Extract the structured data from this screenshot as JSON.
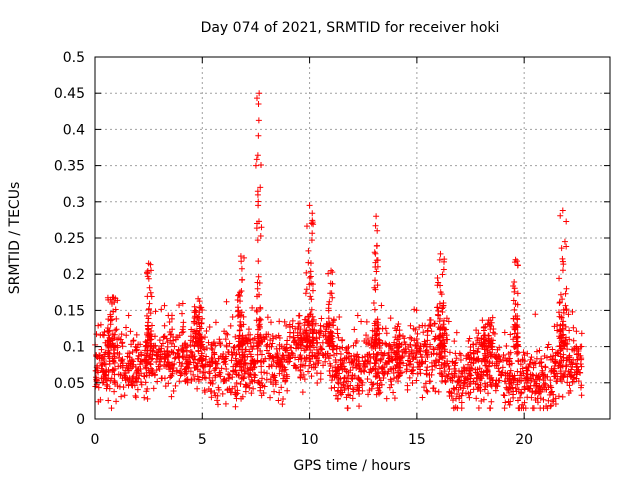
{
  "chart_data": {
    "type": "scatter",
    "title": "Day 074 of 2021, SRMTID for receiver hoki",
    "xlabel": "GPS time / hours",
    "ylabel": "SRMTID / TECUs",
    "xlim": [
      0,
      24
    ],
    "ylim": [
      0,
      0.5
    ],
    "xticks": [
      0,
      5,
      10,
      15,
      20
    ],
    "xtick_labels": [
      "0",
      "5",
      "10",
      "15",
      "20"
    ],
    "yticks": [
      0,
      0.05,
      0.1,
      0.15,
      0.2,
      0.25,
      0.3,
      0.35,
      0.4,
      0.45,
      0.5
    ],
    "ytick_labels": [
      "0",
      "0.05",
      "0.1",
      "0.15",
      "0.2",
      "0.25",
      "0.3",
      "0.35",
      "0.4",
      "0.45",
      "0.5"
    ],
    "grid": true,
    "marker": "+",
    "marker_color": "#ff0000",
    "x_extent": [
      0,
      22.7
    ],
    "baseline_segments": [
      {
        "x": [
          0,
          2.5
        ],
        "center": 0.075
      },
      {
        "x": [
          2.5,
          5
        ],
        "center": 0.085
      },
      {
        "x": [
          5,
          7
        ],
        "center": 0.07
      },
      {
        "x": [
          7,
          9
        ],
        "center": 0.075
      },
      {
        "x": [
          9,
          11
        ],
        "center": 0.1
      },
      {
        "x": [
          11,
          12.5
        ],
        "center": 0.065
      },
      {
        "x": [
          12.5,
          14
        ],
        "center": 0.08
      },
      {
        "x": [
          14,
          16.5
        ],
        "center": 0.085
      },
      {
        "x": [
          16.5,
          17.5
        ],
        "center": 0.06
      },
      {
        "x": [
          17.5,
          19
        ],
        "center": 0.07
      },
      {
        "x": [
          19,
          21.5
        ],
        "center": 0.055
      },
      {
        "x": [
          21.5,
          22.7
        ],
        "center": 0.08
      }
    ],
    "spikes": [
      {
        "x": 0.8,
        "peak": 0.17,
        "width": 0.25
      },
      {
        "x": 2.5,
        "peak": 0.215,
        "width": 0.15
      },
      {
        "x": 4.8,
        "peak": 0.17,
        "width": 0.2
      },
      {
        "x": 6.8,
        "peak": 0.225,
        "width": 0.15
      },
      {
        "x": 7.65,
        "peak": 0.45,
        "width": 0.12
      },
      {
        "x": 10.0,
        "peak": 0.295,
        "width": 0.18
      },
      {
        "x": 11.0,
        "peak": 0.205,
        "width": 0.15
      },
      {
        "x": 13.1,
        "peak": 0.28,
        "width": 0.12
      },
      {
        "x": 16.1,
        "peak": 0.228,
        "width": 0.18
      },
      {
        "x": 19.6,
        "peak": 0.22,
        "width": 0.12
      },
      {
        "x": 21.8,
        "peak": 0.288,
        "width": 0.18
      },
      {
        "x": 18.3,
        "peak": 0.14,
        "width": 0.3
      }
    ],
    "sample_points": [
      {
        "x": 7.65,
        "y": 0.45
      },
      {
        "x": 7.62,
        "y": 0.435
      },
      {
        "x": 7.5,
        "y": 0.35
      },
      {
        "x": 7.7,
        "y": 0.32
      },
      {
        "x": 7.6,
        "y": 0.295
      },
      {
        "x": 7.55,
        "y": 0.27
      },
      {
        "x": 10.0,
        "y": 0.295
      },
      {
        "x": 10.1,
        "y": 0.27
      },
      {
        "x": 13.1,
        "y": 0.28
      },
      {
        "x": 13.15,
        "y": 0.26
      },
      {
        "x": 21.8,
        "y": 0.288
      },
      {
        "x": 21.9,
        "y": 0.245
      },
      {
        "x": 16.1,
        "y": 0.228
      },
      {
        "x": 6.8,
        "y": 0.225
      },
      {
        "x": 19.6,
        "y": 0.22
      },
      {
        "x": 2.5,
        "y": 0.215
      },
      {
        "x": 11.0,
        "y": 0.205
      }
    ]
  }
}
